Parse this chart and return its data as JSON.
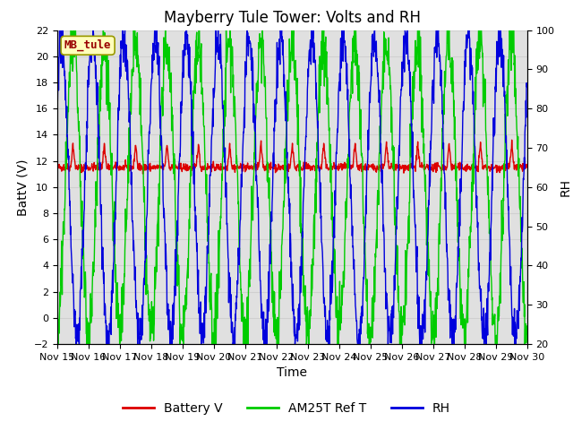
{
  "title": "Mayberry Tule Tower: Volts and RH",
  "xlabel": "Time",
  "ylabel_left": "BattV (V)",
  "ylabel_right": "RH",
  "ylim_left": [
    -2,
    22
  ],
  "ylim_right": [
    20,
    100
  ],
  "yticks_left": [
    -2,
    0,
    2,
    4,
    6,
    8,
    10,
    12,
    14,
    16,
    18,
    20,
    22
  ],
  "yticks_right": [
    20,
    30,
    40,
    50,
    60,
    70,
    80,
    90,
    100
  ],
  "xtick_labels": [
    "Nov 15",
    "Nov 16",
    "Nov 17",
    "Nov 18",
    "Nov 19",
    "Nov 20",
    "Nov 21",
    "Nov 22",
    "Nov 23",
    "Nov 24",
    "Nov 25",
    "Nov 26",
    "Nov 27",
    "Nov 28",
    "Nov 29",
    "Nov 30"
  ],
  "legend_labels": [
    "Battery V",
    "AM25T Ref T",
    "RH"
  ],
  "legend_colors": [
    "#dd0000",
    "#00cc00",
    "#0000dd"
  ],
  "battery_color": "#dd0000",
  "am25t_color": "#00cc00",
  "rh_color": "#0000dd",
  "grid_color": "#d0d0d0",
  "bg_color": "#e0e0e0",
  "box_label": "MB_tule",
  "box_facecolor": "#ffffbb",
  "box_edgecolor": "#999900",
  "box_textcolor": "#990000",
  "title_fontsize": 12,
  "axis_fontsize": 10,
  "tick_fontsize": 8,
  "legend_fontsize": 10
}
